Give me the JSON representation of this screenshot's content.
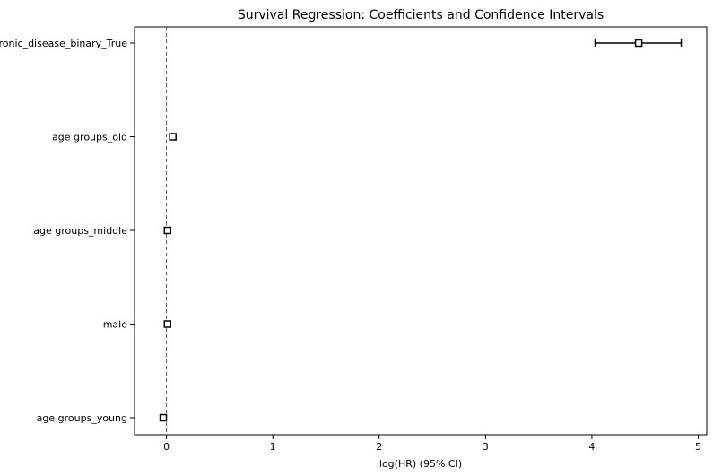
{
  "chart_data": {
    "type": "forest",
    "title": "Survival Regression: Coefficients and Confidence Intervals",
    "xlabel": "log(HR) (95% CI)",
    "ylabel": "",
    "xlim": [
      -0.3,
      5.08
    ],
    "xticks": [
      "0",
      "1",
      "2",
      "3",
      "4",
      "5"
    ],
    "reference_line_x": 0,
    "grid": false,
    "legend": "none",
    "rows": [
      {
        "label": "chronic_disease_binary_True",
        "coef": 4.44,
        "ci_lower": 4.03,
        "ci_upper": 4.84
      },
      {
        "label": "age groups_old",
        "coef": 0.06,
        "ci_lower": 0.06,
        "ci_upper": 0.06
      },
      {
        "label": "age groups_middle",
        "coef": 0.01,
        "ci_lower": 0.01,
        "ci_upper": 0.01
      },
      {
        "label": "male",
        "coef": 0.01,
        "ci_lower": 0.01,
        "ci_upper": 0.01
      },
      {
        "label": "age groups_young",
        "coef": -0.03,
        "ci_lower": -0.03,
        "ci_upper": -0.03
      }
    ]
  }
}
